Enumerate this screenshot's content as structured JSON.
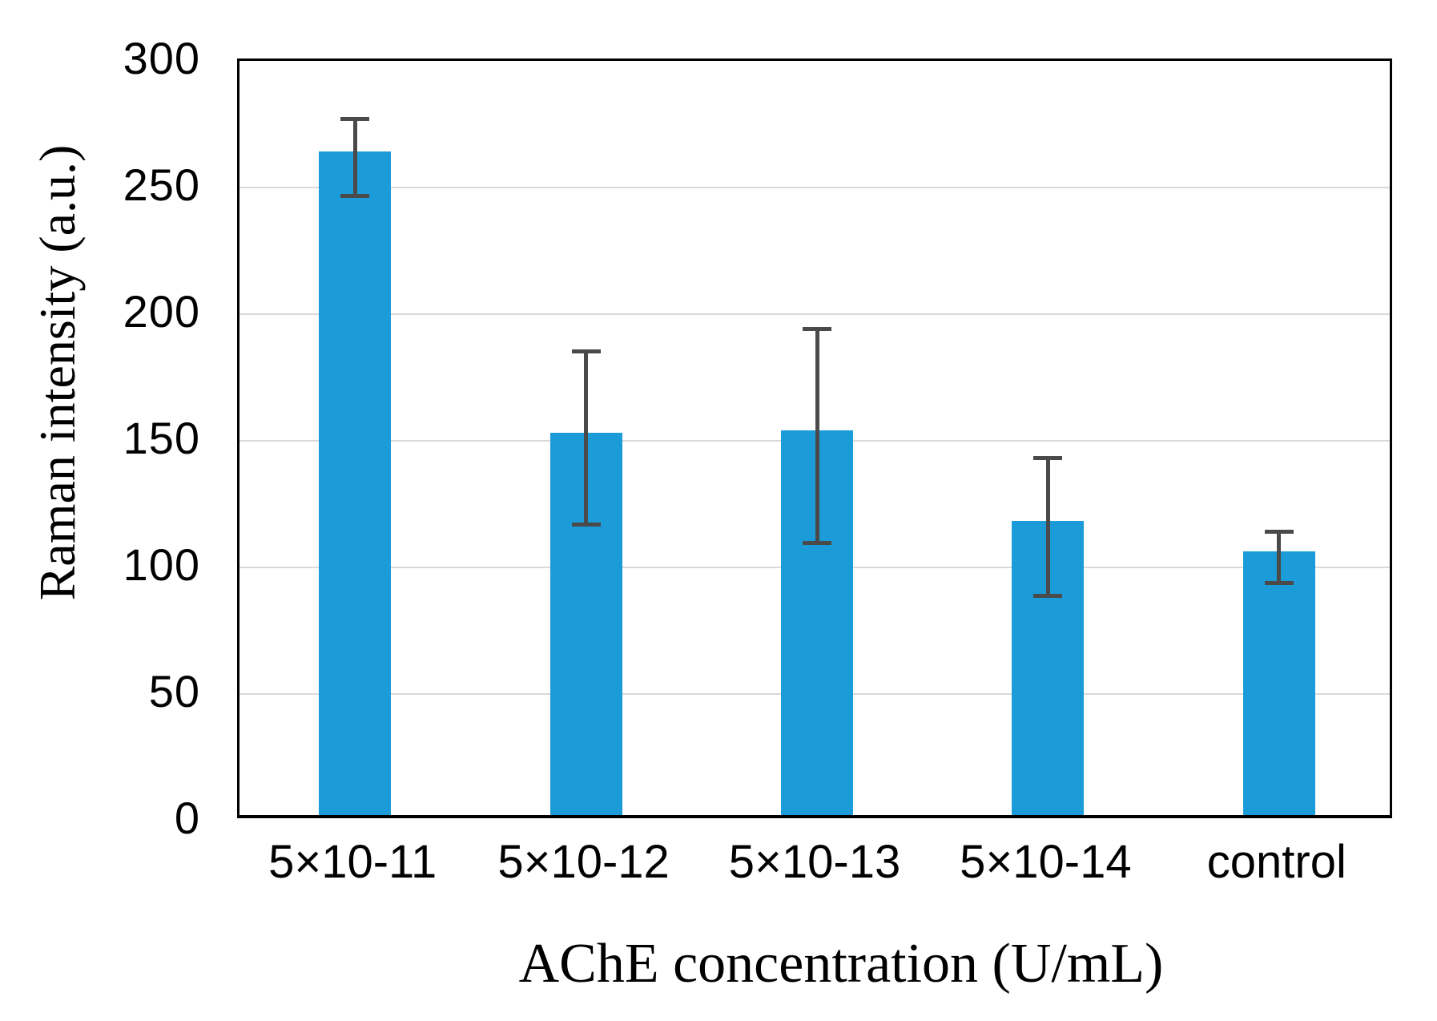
{
  "chart_data": {
    "type": "bar",
    "title": "",
    "xlabel": "AChE concentration (U/mL)",
    "ylabel": "Raman intensity (a.u.)",
    "categories": [
      "5×10-11",
      "5×10-12",
      "5×10-13",
      "5×10-14",
      "control"
    ],
    "values": [
      262,
      151,
      152,
      116,
      104
    ],
    "errors": [
      16,
      35,
      43,
      28,
      11
    ],
    "yticks": [
      0,
      50,
      100,
      150,
      200,
      250,
      300
    ],
    "ylim": [
      0,
      300
    ],
    "grid": true,
    "legend": "none",
    "bar_color": "#1b9cd8",
    "error_color": "#4a4a4a",
    "gridline_color": "#d9d9d9",
    "axis_color": "#000000",
    "text_color": "#000000"
  }
}
